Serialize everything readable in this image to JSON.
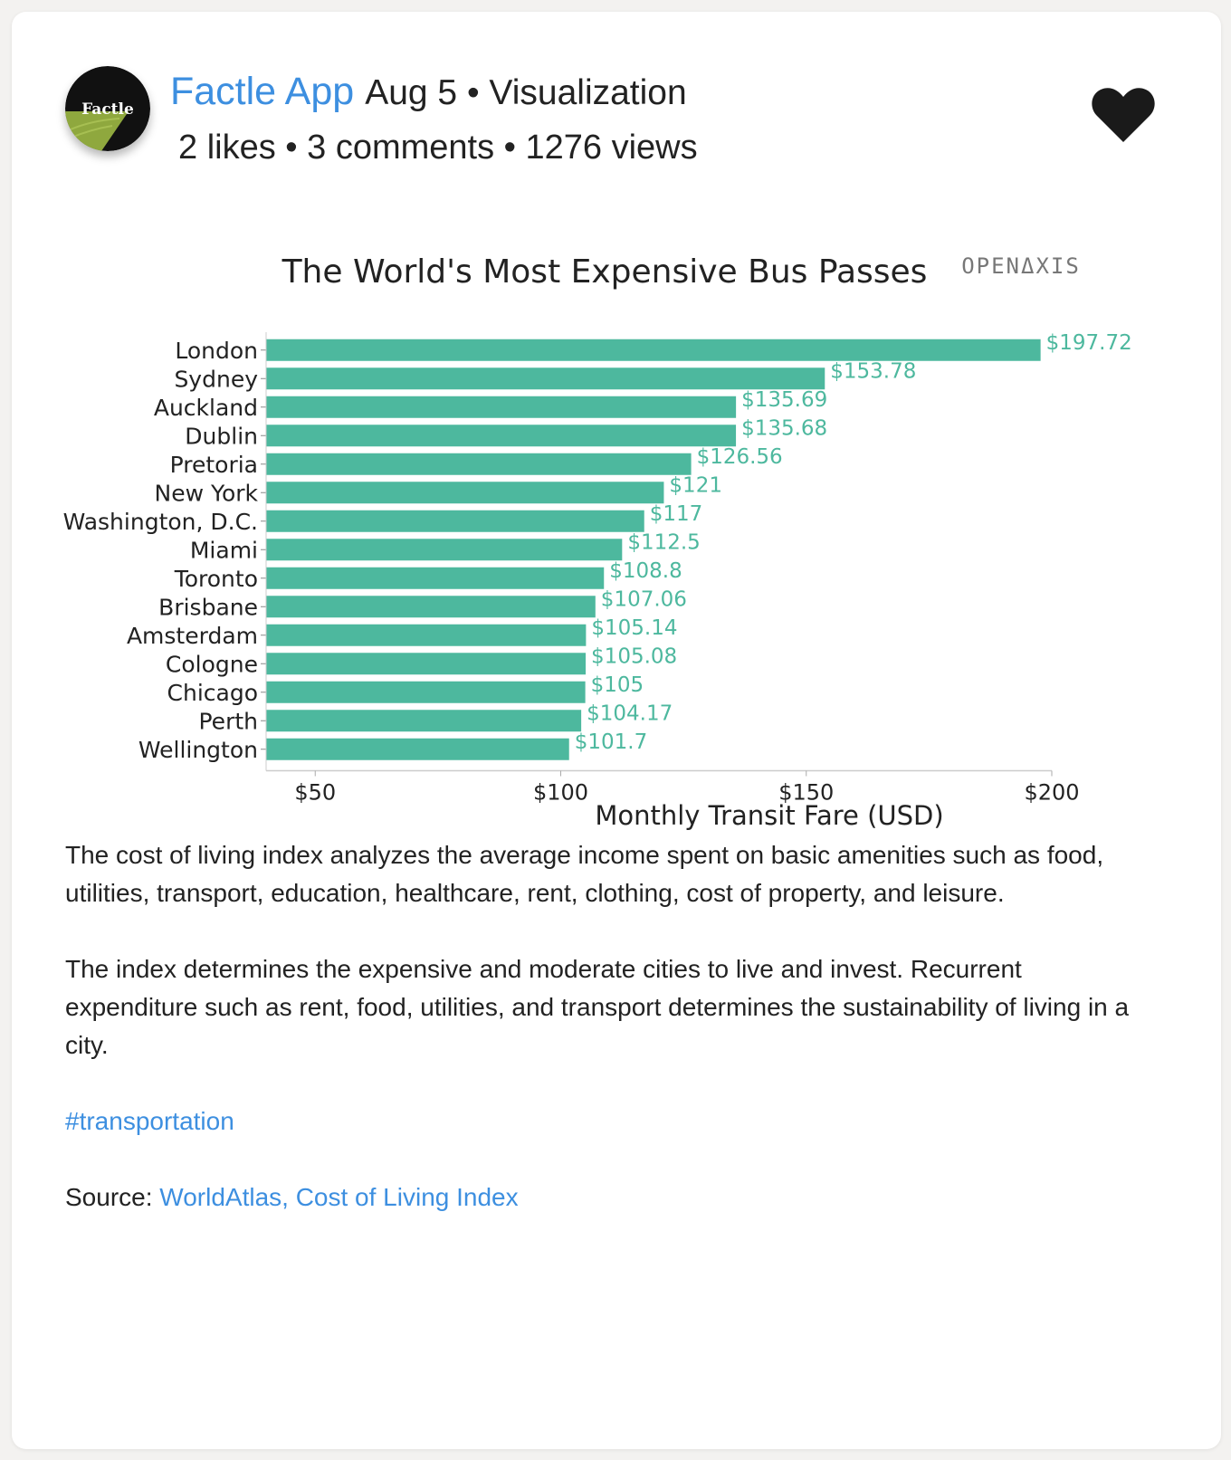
{
  "header": {
    "avatar_text": "Factle",
    "app_name": "Factle App",
    "date_category": "Aug 5 • Visualization",
    "stats": "2 likes • 3 comments • 1276 views",
    "like_icon": "heart-icon"
  },
  "chart_data": {
    "type": "bar",
    "orientation": "horizontal",
    "title": "The World's Most Expensive Bus Passes",
    "watermark": "OPENΔXIS",
    "xlabel": "Monthly Transit Fare (USD)",
    "ylabel": "",
    "xlim": [
      40,
      200
    ],
    "xticks": [
      50,
      100,
      150,
      200
    ],
    "xtick_labels": [
      "$50",
      "$100",
      "$150",
      "$200"
    ],
    "bar_color": "#4db89e",
    "label_color": "#4db89e",
    "categories": [
      "London",
      "Sydney",
      "Auckland",
      "Dublin",
      "Pretoria",
      "New York",
      "Washington, D.C.",
      "Miami",
      "Toronto",
      "Brisbane",
      "Amsterdam",
      "Cologne",
      "Chicago",
      "Perth",
      "Wellington"
    ],
    "values": [
      197.72,
      153.78,
      135.69,
      135.68,
      126.56,
      121,
      117,
      112.5,
      108.8,
      107.06,
      105.14,
      105.08,
      105,
      104.17,
      101.7
    ],
    "value_labels": [
      "$197.72",
      "$153.78",
      "$135.69",
      "$135.68",
      "$126.56",
      "$121",
      "$117",
      "$112.5",
      "$108.8",
      "$107.06",
      "$105.14",
      "$105.08",
      "$105",
      "$104.17",
      "$101.7"
    ]
  },
  "body": {
    "paragraph1": "The cost of living index analyzes the average income spent on basic amenities such as food, utilities, transport, education, healthcare, rent, clothing, cost of property, and leisure.",
    "paragraph2": "The index determines the expensive and moderate cities to live and invest. Recurrent expenditure such as rent, food, utilities, and transport determines the sustainability of living in a city.",
    "hashtag": "#transportation",
    "source_label": "Source: ",
    "source_link": "WorldAtlas, Cost of Living Index"
  },
  "colors": {
    "accent": "#3d8fe0",
    "bar": "#4db89e",
    "avatar_green": "#8fa83e"
  }
}
